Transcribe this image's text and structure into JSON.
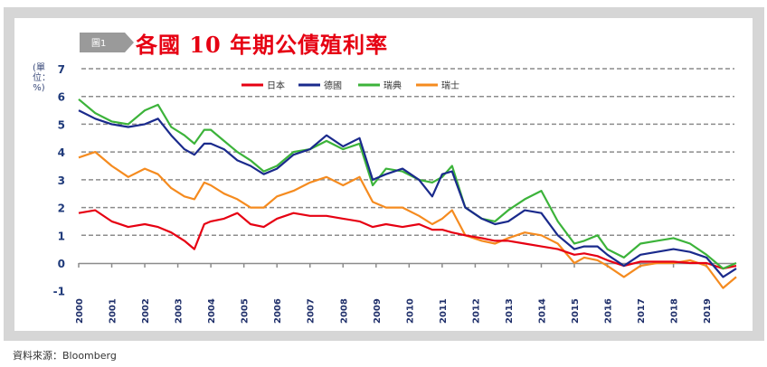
{
  "figure_tag": "圖1",
  "title": "各國 10 年期公債殖利率",
  "unit_label": "(單位：%)",
  "source": "資料來源：Bloomberg",
  "colors": {
    "frame": "#d6d6d6",
    "title": "#e60012",
    "grid": "#8c8c8c",
    "tag": "#9a9a9a"
  },
  "chart_data": {
    "type": "line",
    "title": "各國 10 年期公債殖利率",
    "xlabel": "",
    "ylabel": "(單位：%)",
    "ylim": [
      -1,
      7
    ],
    "xlim": [
      2000,
      2019.9
    ],
    "yticks": [
      "7",
      "6",
      "5",
      "4",
      "3",
      "2",
      "1",
      "0",
      "-1"
    ],
    "xticks": [
      "2000",
      "2001",
      "2002",
      "2003",
      "2004",
      "2005",
      "2006",
      "2007",
      "2008",
      "2009",
      "2010",
      "2011",
      "2012",
      "2013",
      "2014",
      "2015",
      "2016",
      "2017",
      "2018",
      "2019"
    ],
    "grid": "horizontal dashed",
    "legend": "top-center",
    "x": [
      2000.0,
      2000.5,
      2001.0,
      2001.5,
      2002.0,
      2002.4,
      2002.8,
      2003.2,
      2003.5,
      2003.8,
      2004.0,
      2004.4,
      2004.8,
      2005.2,
      2005.6,
      2006.0,
      2006.5,
      2007.0,
      2007.5,
      2008.0,
      2008.5,
      2008.9,
      2009.3,
      2009.8,
      2010.3,
      2010.7,
      2011.0,
      2011.3,
      2011.7,
      2012.2,
      2012.6,
      2013.0,
      2013.5,
      2014.0,
      2014.5,
      2015.0,
      2015.3,
      2015.7,
      2016.0,
      2016.5,
      2017.0,
      2017.5,
      2018.0,
      2018.5,
      2019.0,
      2019.5,
      2019.9
    ],
    "series": [
      {
        "name": "日本",
        "color": "#e60012",
        "values": [
          1.8,
          1.9,
          1.5,
          1.3,
          1.4,
          1.3,
          1.1,
          0.8,
          0.5,
          1.4,
          1.5,
          1.6,
          1.8,
          1.4,
          1.3,
          1.6,
          1.8,
          1.7,
          1.7,
          1.6,
          1.5,
          1.3,
          1.4,
          1.3,
          1.4,
          1.2,
          1.2,
          1.1,
          1.0,
          0.9,
          0.8,
          0.8,
          0.7,
          0.6,
          0.5,
          0.3,
          0.35,
          0.25,
          0.1,
          -0.1,
          0.05,
          0.05,
          0.05,
          0.0,
          0.0,
          -0.2,
          -0.1
        ]
      },
      {
        "name": "德國",
        "color": "#1a2a8c",
        "values": [
          5.5,
          5.2,
          5.0,
          4.9,
          5.0,
          5.2,
          4.6,
          4.1,
          3.9,
          4.3,
          4.3,
          4.1,
          3.7,
          3.5,
          3.2,
          3.4,
          3.9,
          4.1,
          4.6,
          4.2,
          4.5,
          3.0,
          3.2,
          3.4,
          3.0,
          2.4,
          3.2,
          3.3,
          2.0,
          1.6,
          1.4,
          1.5,
          1.9,
          1.8,
          1.0,
          0.5,
          0.6,
          0.6,
          0.3,
          -0.1,
          0.3,
          0.4,
          0.5,
          0.4,
          0.2,
          -0.5,
          -0.2
        ]
      },
      {
        "name": "瑞典",
        "color": "#3cb33a",
        "values": [
          5.9,
          5.4,
          5.1,
          5.0,
          5.5,
          5.7,
          4.9,
          4.6,
          4.3,
          4.8,
          4.8,
          4.4,
          4.0,
          3.7,
          3.3,
          3.5,
          4.0,
          4.1,
          4.4,
          4.1,
          4.3,
          2.8,
          3.4,
          3.3,
          3.0,
          2.9,
          3.1,
          3.5,
          2.0,
          1.6,
          1.5,
          1.9,
          2.3,
          2.6,
          1.5,
          0.7,
          0.8,
          1.0,
          0.5,
          0.2,
          0.7,
          0.8,
          0.9,
          0.7,
          0.3,
          -0.2,
          0.0
        ]
      },
      {
        "name": "瑞士",
        "color": "#f58b1f",
        "values": [
          3.8,
          4.0,
          3.5,
          3.1,
          3.4,
          3.2,
          2.7,
          2.4,
          2.3,
          2.9,
          2.8,
          2.5,
          2.3,
          2.0,
          2.0,
          2.4,
          2.6,
          2.9,
          3.1,
          2.8,
          3.1,
          2.2,
          2.0,
          2.0,
          1.7,
          1.4,
          1.6,
          1.9,
          1.0,
          0.8,
          0.7,
          0.9,
          1.1,
          1.0,
          0.7,
          0.0,
          0.2,
          0.1,
          -0.1,
          -0.5,
          -0.1,
          0.0,
          0.0,
          0.1,
          -0.1,
          -0.9,
          -0.5
        ]
      }
    ]
  }
}
